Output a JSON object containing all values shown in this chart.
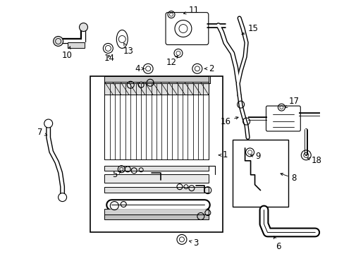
{
  "background_color": "#ffffff",
  "line_color": "#000000",
  "fig_width": 4.89,
  "fig_height": 3.6,
  "dpi": 100,
  "label_fontsize": 8.5
}
